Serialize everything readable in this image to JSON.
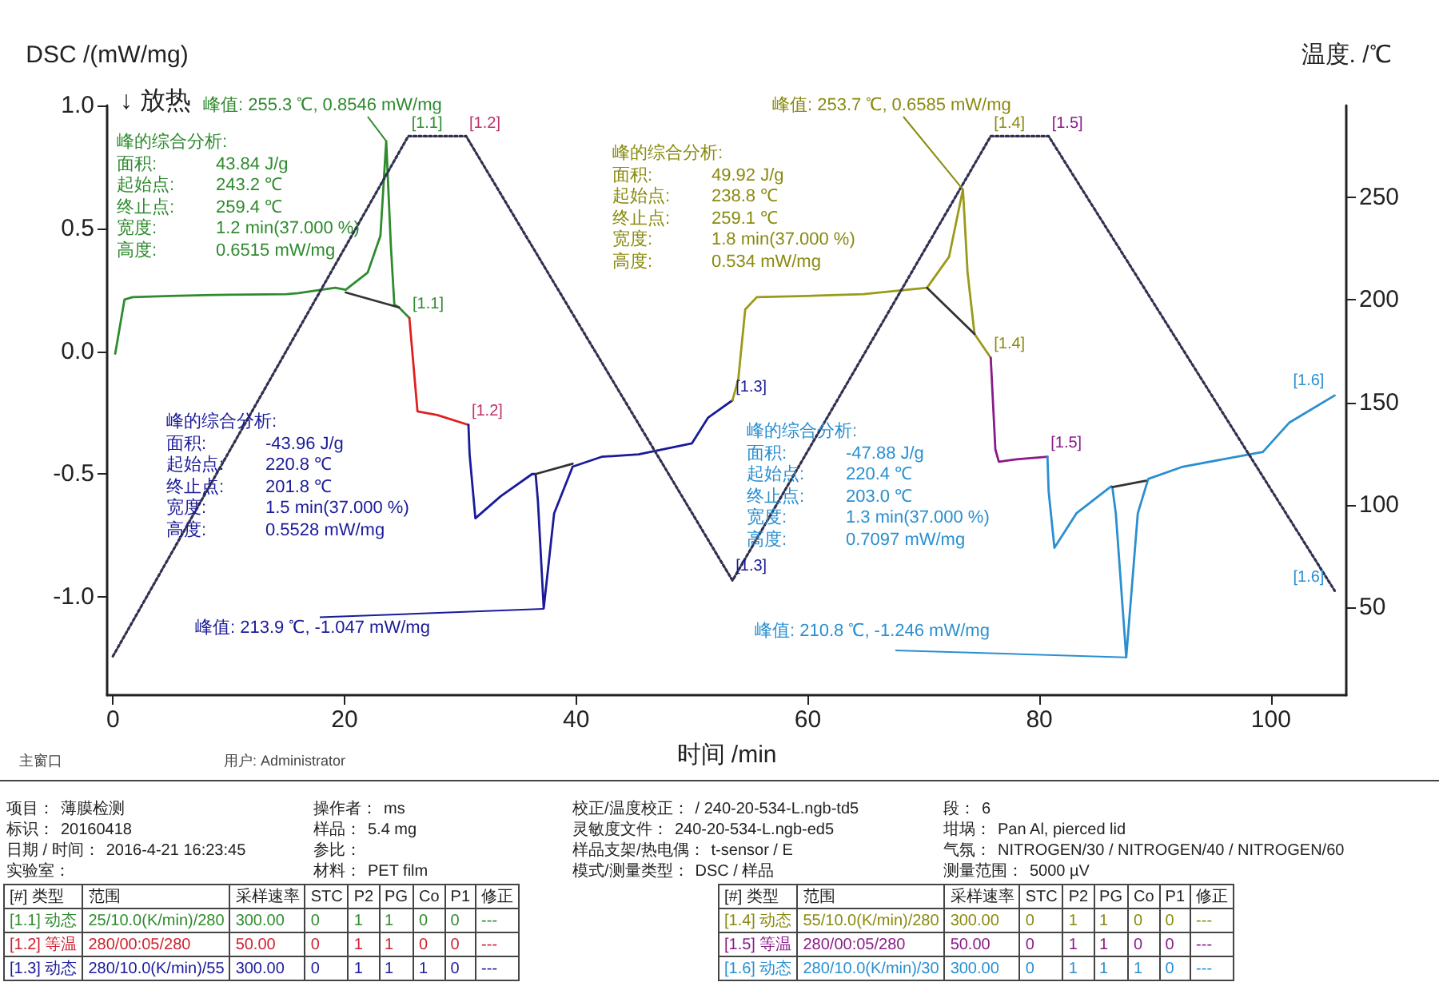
{
  "chart_data": {
    "type": "line",
    "xlabel": "时间 /min",
    "ylabel": "DSC /(mW/mg)",
    "y2label": "温度. /℃",
    "xlim": [
      -0.5,
      106.5
    ],
    "xticks": [
      0,
      20,
      40,
      60,
      80,
      100
    ],
    "ylim": [
      -1.4,
      1.0
    ],
    "yticks": [
      {
        "value": -1,
        "label": "-1.0"
      },
      {
        "value": -0.5,
        "label": "-0.5"
      },
      {
        "value": 0,
        "label": "0.0"
      },
      {
        "value": 0.5,
        "label": "0.5"
      },
      {
        "value": 1,
        "label": "1.0"
      }
    ],
    "y2lim": [
      7,
      295
    ],
    "y2ticks": [
      50,
      100,
      150,
      200,
      250
    ],
    "grid": false,
    "marker": "none",
    "series": [
      {
        "color": "#2e8b2e",
        "x": [
          0.2,
          1,
          1.7,
          5,
          10,
          15,
          16,
          19.2,
          20.1,
          22,
          23.1,
          23.6,
          24,
          24.3,
          24.7,
          25.6
        ],
        "values": [
          -0.01,
          0.21,
          0.22,
          0.225,
          0.23,
          0.232,
          0.236,
          0.258,
          0.25,
          0.32,
          0.47,
          0.8546,
          0.43,
          0.19,
          0.178,
          0.135
        ]
      },
      {
        "color": "#e02020",
        "x": [
          25.6,
          26.3,
          28,
          30.7
        ],
        "values": [
          0.135,
          -0.245,
          -0.26,
          -0.3
        ]
      },
      {
        "color": "#1a1a9a",
        "x": [
          30.7,
          30.8,
          31.3,
          33.5,
          36.2,
          36.5,
          36.7,
          37.2,
          38.1,
          39.7,
          42.2,
          45.4,
          50,
          51.4,
          53.5
        ],
        "values": [
          -0.3,
          -0.42,
          -0.68,
          -0.59,
          -0.5,
          -0.5,
          -0.61,
          -1.047,
          -0.66,
          -0.47,
          -0.43,
          -0.42,
          -0.375,
          -0.27,
          -0.2
        ]
      },
      {
        "color": "#9a9a1a",
        "x": [
          53.5,
          54,
          54.6,
          55.6,
          60,
          64.8,
          70.3,
          72.2,
          73.4,
          73.8,
          74.4,
          75.8
        ],
        "values": [
          -0.2,
          -0.115,
          0.17,
          0.22,
          0.225,
          0.232,
          0.258,
          0.384,
          0.6585,
          0.32,
          0.07,
          -0.027
        ]
      },
      {
        "color": "#8a1a8a",
        "x": [
          75.8,
          76.2,
          76.5,
          78,
          80.7
        ],
        "values": [
          -0.027,
          -0.4,
          -0.45,
          -0.44,
          -0.43
        ]
      },
      {
        "color": "#2a8fd0",
        "x": [
          80.7,
          80.8,
          81.3,
          83.2,
          86.2,
          86.3,
          86.6,
          87.5,
          88.5,
          89.4,
          92.4,
          99.3,
          101.6,
          105.5
        ],
        "values": [
          -0.43,
          -0.57,
          -0.8,
          -0.66,
          -0.55,
          -0.553,
          -0.66,
          -1.246,
          -0.66,
          -0.52,
          -0.47,
          -0.41,
          -0.29,
          -0.18
        ]
      },
      {
        "color": "#303050",
        "axis": "y2",
        "line_style": "dotted",
        "x": [
          0,
          25.5,
          30.5,
          53.5,
          75.8,
          80.8,
          105.5
        ],
        "values": [
          26,
          280,
          280,
          63,
          280,
          280,
          58
        ]
      },
      {
        "color": "#333333",
        "x": [
          20.1,
          24.7
        ],
        "values": [
          0.239,
          0.178
        ]
      },
      {
        "color": "#333333",
        "x": [
          36.5,
          39.7
        ],
        "values": [
          -0.5,
          -0.458
        ]
      },
      {
        "color": "#333333",
        "x": [
          70.3,
          74.4
        ],
        "values": [
          0.258,
          0.07
        ]
      },
      {
        "color": "#333333",
        "x": [
          86.3,
          89.2
        ],
        "values": [
          -0.553,
          -0.527
        ]
      }
    ],
    "annotations": [
      "↓ 放热",
      {
        "text": "峰值: 255.3 ℃, 0.8546 mW/mg",
        "x": 23.6,
        "y": 0.8546
      },
      "峰的综合分析:\n面积:\t43.84 J/g\n起始点:\t243.2 ℃\n终止点:\t259.4 ℃\n宽度:\t1.2 min(37.000 %)\n高度:\t0.6515 mW/mg",
      {
        "text": "峰值: 213.9 ℃, -1.047 mW/mg",
        "x": 37.2,
        "y": -1.047
      },
      "峰的综合分析:\n面积:\t-43.96 J/g\n起始点:\t220.8 ℃\n终止点:\t201.8 ℃\n宽度:\t1.5 min(37.000 %)\n高度:\t0.5528 mW/mg",
      {
        "text": "峰值: 253.7 ℃, 0.6585 mW/mg",
        "x": 73.4,
        "y": 0.6585
      },
      "峰的综合分析:\n面积:\t49.92 J/g\n起始点:\t238.8 ℃\n终止点:\t259.1 ℃\n宽度:\t1.8 min(37.000 %)\n高度:\t0.534 mW/mg",
      {
        "text": "峰值: 210.8 ℃, -1.246 mW/mg",
        "x": 87.5,
        "y": -1.246
      },
      "峰的综合分析:\n面积:\t-47.88 J/g\n起始点:\t220.4 ℃\n终止点:\t203.0 ℃\n宽度:\t1.3 min(37.000 %)\n高度:\t0.7097 mW/mg",
      {
        "text": "[1.1]",
        "x": 25.5,
        "y": 0.87
      },
      {
        "text": "[1.2]",
        "x": 30.5,
        "y": 0.87
      },
      {
        "text": "[1.1]",
        "x": 25.6,
        "y": 0.135
      },
      {
        "text": "[1.2]",
        "x": 30.7,
        "y": -0.3
      },
      {
        "text": "[1.3]",
        "x": 53.5,
        "y": -0.2
      },
      {
        "text": "[1.3]",
        "x": 53.5,
        "y": -0.93
      },
      {
        "text": "[1.4]",
        "x": 75.8,
        "y": 0.87
      },
      {
        "text": "[1.5]",
        "x": 80.8,
        "y": 0.87
      },
      {
        "text": "[1.4]",
        "x": 75.8,
        "y": -0.027
      },
      {
        "text": "[1.5]",
        "x": 80.7,
        "y": -0.43
      },
      {
        "text": "[1.6]",
        "x": 105.5,
        "y": -0.18
      },
      {
        "text": "[1.6]",
        "x": 105.5,
        "y": -0.98
      },
      "主窗口",
      "用户: Administrator",
      "项目：\t薄膜检测",
      "标识：\t20160418",
      "日期 / 时间：\t2016-4-21 16:23:45",
      "实验室：",
      "操作者：\tms",
      "样品：\t5.4 mg",
      "参比：",
      "材料：\tPET film",
      "校正/温度校正：\t/ 240-20-534-L.ngb-td5",
      "灵敏度文件：\t240-20-534-L.ngb-ed5",
      "样品支架/热电偶：\tt-sensor / E",
      "模式/测量类型：\tDSC / 样品",
      "段：\t6",
      "坩埚：\tPan Al, pierced lid",
      "气氛：\tNITROGEN/30 / NITROGEN/40 / NITROGEN/60",
      "测量范围：\t5000 µV",
      "[#] 类型\t范围\t采样速率\tSTC\tP2\tPG\tCo\tP1\t修正",
      "[1.1] 动态\t25/10.0(K/min)/280\t300.00\t0\t1\t1\t0\t0\t---",
      "[1.2] 等温\t280/00:05/280\t50.00\t0\t1\t1\t0\t0\t---",
      "[1.3] 动态\t280/10.0(K/min)/55\t300.00\t0\t1\t1\t1\t0\t---",
      "[#] 类型\t范围\t采样速率\tSTC\tP2\tPG\tCo\tP1\t修正",
      "[1.4] 动态\t55/10.0(K/min)/280\t300.00\t0\t1\t1\t0\t0\t---",
      "[1.5] 等温\t280/00:05/280\t50.00\t0\t1\t1\t0\t0\t---",
      "[1.6] 动态\t280/10.0(K/min)/30\t300.00\t0\t1\t1\t1\t0\t---"
    ]
  }
}
